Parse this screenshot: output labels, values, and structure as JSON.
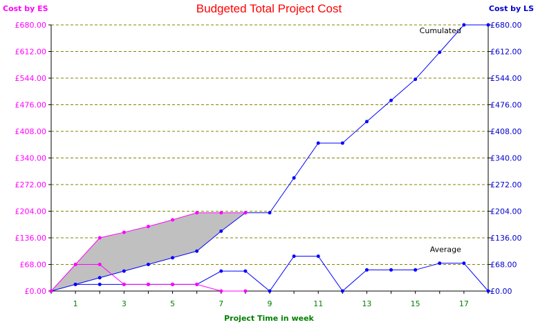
{
  "chart_data": {
    "type": "line",
    "title": "Budgeted Total Project Cost",
    "left_axis_title": "Cost by ES",
    "right_axis_title": "Cost by LS",
    "xlabel": "Project Time in week",
    "x": [
      0,
      1,
      2,
      3,
      4,
      5,
      6,
      7,
      8,
      9,
      10,
      11,
      12,
      13,
      14,
      15,
      16,
      17,
      18
    ],
    "x_tick_labels": [
      "1",
      "3",
      "5",
      "7",
      "9",
      "11",
      "13",
      "15",
      "17"
    ],
    "x_tick_values": [
      1,
      3,
      5,
      7,
      9,
      11,
      13,
      15,
      17
    ],
    "xlim": [
      0,
      18
    ],
    "ylim": [
      0,
      680
    ],
    "y_ticks": [
      0,
      68,
      136,
      204,
      272,
      340,
      408,
      476,
      544,
      612,
      680
    ],
    "y_tick_labels": [
      "£0.00",
      "£68.00",
      "£136.00",
      "£204.00",
      "£272.00",
      "£340.00",
      "£408.00",
      "£476.00",
      "£544.00",
      "£612.00",
      "£680.00"
    ],
    "grid": "horizontal dashed",
    "series": [
      {
        "key": "es_cumulated",
        "axis": "left",
        "x": [
          0,
          1,
          2,
          3,
          4,
          5,
          6,
          7,
          8
        ],
        "values": [
          0,
          68,
          136,
          150,
          165,
          182,
          200,
          200,
          200
        ]
      },
      {
        "key": "es_average",
        "axis": "left",
        "x": [
          1,
          2,
          3,
          4,
          5,
          6,
          7,
          8
        ],
        "values": [
          68,
          68,
          17,
          17,
          17,
          17,
          0,
          0
        ]
      },
      {
        "key": "ls_cumulated",
        "axis": "right",
        "x": [
          0,
          1,
          2,
          3,
          4,
          5,
          6,
          7,
          8,
          9,
          10,
          11,
          12,
          13,
          14,
          15,
          16,
          17,
          18
        ],
        "values": [
          0,
          17,
          34,
          51,
          68,
          85,
          102,
          153,
          200,
          200,
          289,
          378,
          378,
          433,
          487,
          541,
          610,
          680,
          680
        ]
      },
      {
        "key": "ls_average",
        "axis": "right",
        "x": [
          1,
          2,
          3,
          4,
          5,
          6,
          7,
          8,
          9,
          10,
          11,
          12,
          13,
          14,
          15,
          16,
          17,
          18
        ],
        "values": [
          17,
          17,
          17,
          17,
          17,
          17,
          51,
          51,
          0,
          89,
          89,
          0,
          54,
          54,
          54,
          71,
          71,
          0
        ]
      }
    ],
    "annotations": [
      {
        "text": "Cumulated",
        "at_x": 17,
        "at_y": 680
      },
      {
        "text": "Average",
        "at_x": 17,
        "at_y": 54
      }
    ],
    "colors": {
      "es": "#ff00ff",
      "ls": "#0000ff",
      "title": "#ff0000",
      "xlabel": "#008000",
      "x_ticks": "#008000",
      "grid": "#808000",
      "fill": "#c0c0c0",
      "axis": "#000000"
    }
  }
}
